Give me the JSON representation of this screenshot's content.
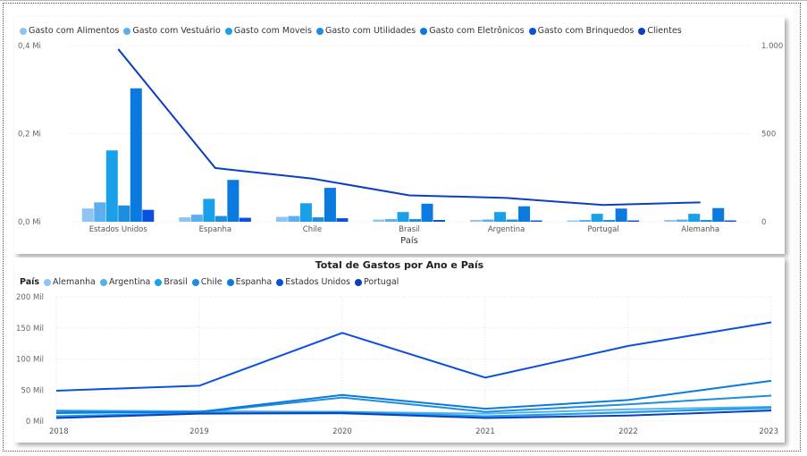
{
  "page": {},
  "chart_data": [
    {
      "type": "bar",
      "title": "",
      "xlabel": "País",
      "ylabel": "",
      "ylim": [
        0,
        0.4
      ],
      "y2lim": [
        0,
        1000
      ],
      "yticks": [
        {
          "v": 0,
          "label": "0,0 Mi"
        },
        {
          "v": 0.2,
          "label": "0,2 Mi"
        },
        {
          "v": 0.4,
          "label": "0,4 Mi"
        }
      ],
      "y2ticks": [
        {
          "v": 0,
          "label": "0"
        },
        {
          "v": 500,
          "label": "500"
        },
        {
          "v": 1000,
          "label": "1.000"
        }
      ],
      "categories": [
        "Estados Unidos",
        "Espanha",
        "Chile",
        "Brasil",
        "Argentina",
        "Portugal",
        "Alemanha"
      ],
      "series": [
        {
          "name": "Gasto com Alimentos",
          "color": "#8fc3f2",
          "values": [
            0.03,
            0.01,
            0.011,
            0.005,
            0.004,
            0.003,
            0.004
          ]
        },
        {
          "name": "Gasto com Vestuário",
          "color": "#5aafec",
          "values": [
            0.044,
            0.016,
            0.013,
            0.006,
            0.005,
            0.004,
            0.005
          ]
        },
        {
          "name": "Gasto com Moveis",
          "color": "#1aa0e8",
          "values": [
            0.162,
            0.052,
            0.042,
            0.022,
            0.022,
            0.018,
            0.018
          ]
        },
        {
          "name": "Gasto com Utilidades",
          "color": "#1c8ee0",
          "values": [
            0.037,
            0.013,
            0.01,
            0.006,
            0.005,
            0.004,
            0.004
          ]
        },
        {
          "name": "Gasto com Eletrônicos",
          "color": "#0a7ae0",
          "values": [
            0.303,
            0.095,
            0.077,
            0.041,
            0.035,
            0.03,
            0.031
          ]
        },
        {
          "name": "Gasto com Brinquedos",
          "color": "#0a50e0",
          "values": [
            0.027,
            0.009,
            0.008,
            0.004,
            0.003,
            0.003,
            0.003
          ]
        }
      ],
      "line_series": {
        "name": "Clientes",
        "color": "#0a3fc0",
        "axis": "right",
        "values": [
          980,
          305,
          245,
          150,
          135,
          95,
          110
        ]
      },
      "grid": true,
      "legend_position": "top-left"
    },
    {
      "type": "line",
      "title": "Total de Gastos por Ano e País",
      "legend_title": "País",
      "xlabel": "",
      "ylabel": "",
      "x": [
        "2018",
        "2019",
        "2020",
        "2021",
        "2022",
        "2023"
      ],
      "ylim": [
        0,
        200
      ],
      "yticks": [
        {
          "v": 0,
          "label": "0 Mil"
        },
        {
          "v": 50,
          "label": "50 Mil"
        },
        {
          "v": 100,
          "label": "100 Mil"
        },
        {
          "v": 150,
          "label": "150 Mil"
        },
        {
          "v": 200,
          "label": "200 Mil"
        }
      ],
      "series": [
        {
          "name": "Alemanha",
          "color": "#8fc3f2",
          "values": [
            7,
            13,
            12,
            6,
            15,
            20
          ]
        },
        {
          "name": "Argentina",
          "color": "#5aafec",
          "values": [
            17,
            16,
            15,
            12,
            19,
            23
          ]
        },
        {
          "name": "Brasil",
          "color": "#1aa0e8",
          "values": [
            8,
            13,
            15,
            8,
            14,
            22
          ]
        },
        {
          "name": "Chile",
          "color": "#1c8ee0",
          "values": [
            16,
            14,
            38,
            15,
            27,
            41
          ]
        },
        {
          "name": "Espanha",
          "color": "#0a7ae0",
          "values": [
            13,
            15,
            42,
            20,
            34,
            65
          ]
        },
        {
          "name": "Estados Unidos",
          "color": "#0a50e0",
          "values": [
            49,
            57,
            142,
            70,
            121,
            159
          ]
        },
        {
          "name": "Portugal",
          "color": "#0a3fc0",
          "values": [
            5,
            12,
            13,
            5,
            9,
            17
          ]
        }
      ],
      "grid": true,
      "legend_position": "top-left"
    }
  ]
}
